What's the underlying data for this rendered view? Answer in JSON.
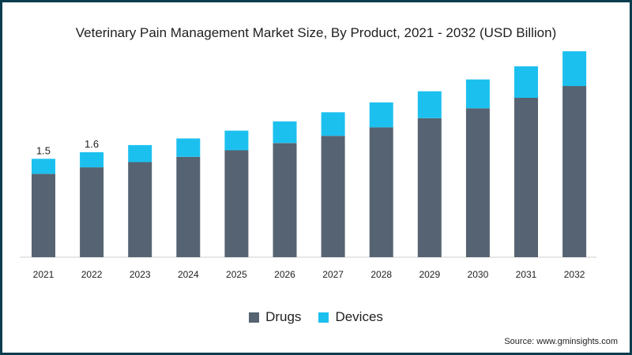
{
  "chart_data": {
    "type": "bar",
    "stacked": true,
    "title": "Veterinary Pain Management Market Size, By Product, 2021 - 2032 (USD Billion)",
    "categories": [
      "2021",
      "2022",
      "2023",
      "2024",
      "2025",
      "2026",
      "2027",
      "2028",
      "2029",
      "2030",
      "2031",
      "2032"
    ],
    "series": [
      {
        "name": "Drugs",
        "color": "#566372",
        "values": [
          1.27,
          1.37,
          1.45,
          1.53,
          1.63,
          1.74,
          1.85,
          1.98,
          2.12,
          2.27,
          2.43,
          2.61
        ]
      },
      {
        "name": "Devices",
        "color": "#1cc0ef",
        "values": [
          0.23,
          0.23,
          0.26,
          0.28,
          0.3,
          0.33,
          0.36,
          0.38,
          0.41,
          0.44,
          0.48,
          0.53
        ]
      }
    ],
    "data_labels": [
      {
        "category": "2021",
        "text": "1.5"
      },
      {
        "category": "2022",
        "text": "1.6"
      }
    ],
    "ylim": [
      0,
      3.2
    ],
    "grid": false,
    "legend_position": "bottom-center",
    "source": "Source: www.gminsights.com"
  }
}
